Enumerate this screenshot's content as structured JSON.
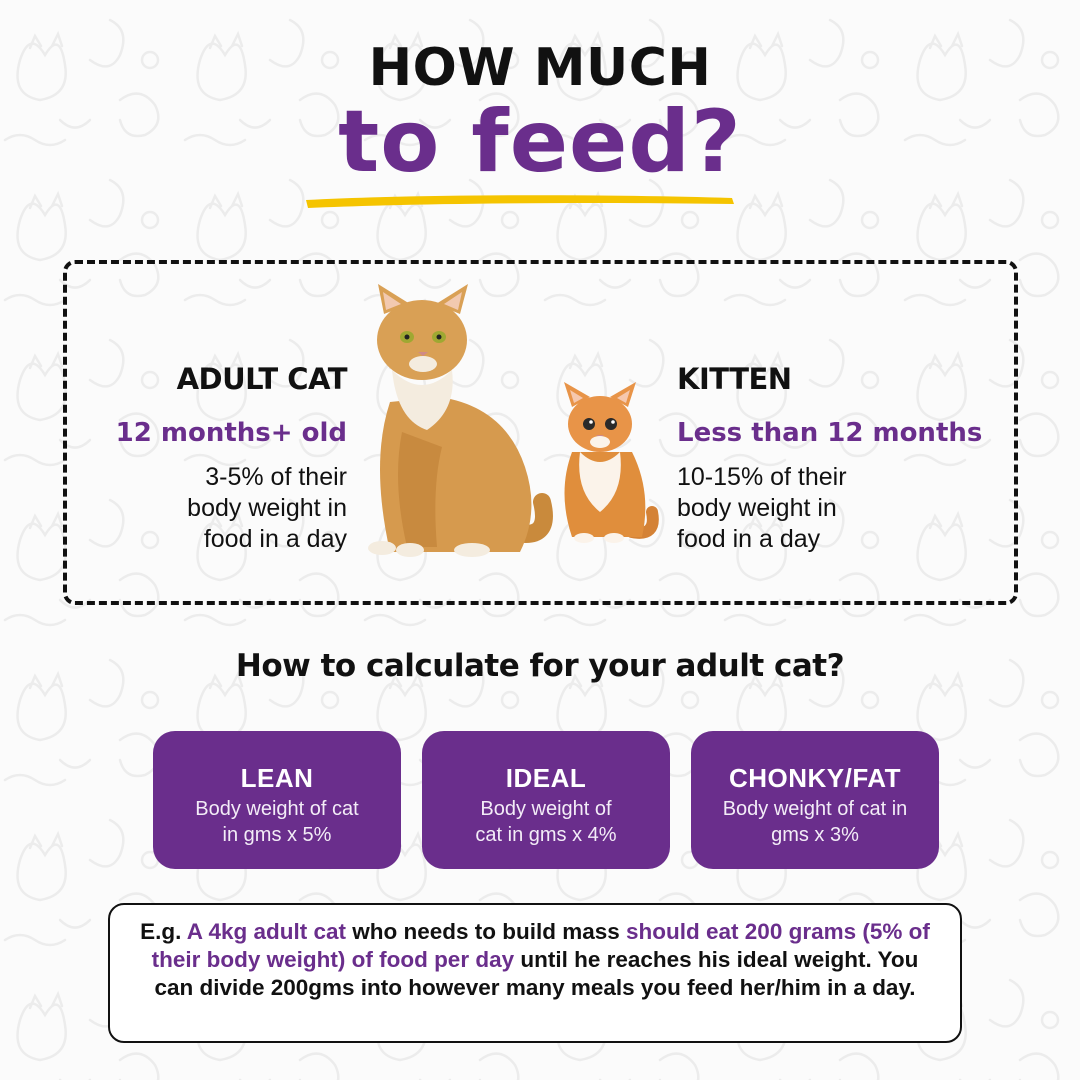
{
  "header": {
    "title_line1": "HOW MUCH",
    "title_line2": "to feed?"
  },
  "colors": {
    "purple": "#6a2e8c",
    "yellow": "#f5c400",
    "text": "#111111"
  },
  "adult": {
    "heading": "ADULT CAT",
    "age": "12 months+ old",
    "desc": [
      "3-5% of their",
      "body weight in",
      "food in a day"
    ]
  },
  "kitten": {
    "heading": "KITTEN",
    "age": "Less than 12 months",
    "desc": [
      "10-15% of their",
      "body weight in",
      "food in a day"
    ]
  },
  "calc": {
    "heading": "How to calculate for your adult cat?",
    "cards": [
      {
        "title": "LEAN",
        "lines": [
          "Body weight of cat",
          "in gms x 5%"
        ]
      },
      {
        "title": "IDEAL",
        "lines": [
          "Body weight of",
          "cat in gms x 4%"
        ]
      },
      {
        "title": "CHONKY/FAT",
        "lines": [
          "Body weight of cat in",
          "gms x 3%"
        ]
      }
    ]
  },
  "example": {
    "p1": "E.g. ",
    "h1": "A 4kg adult cat",
    "p2": " who needs to build mass ",
    "h2": "should eat 200 grams (5% of their body weight) of food per day",
    "p3": " until he reaches his ideal weight. You can divide 200gms into however many meals you feed her/him in a day."
  },
  "icons": [
    "cat-doodle-pattern",
    "yellow-brush-underline",
    "adult-cat-illustration",
    "kitten-illustration"
  ]
}
